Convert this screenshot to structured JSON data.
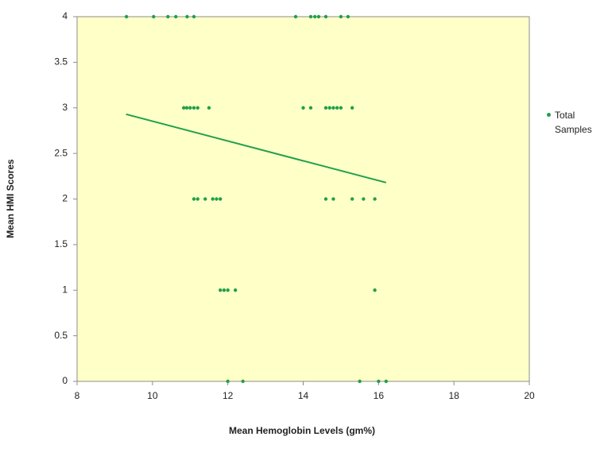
{
  "chart_data": {
    "type": "scatter",
    "x_label": "Mean Hemoglobin Levels (gm%)",
    "y_label": "Mean HMI Scores",
    "xlim": [
      8,
      20
    ],
    "xticks": [
      8,
      10,
      12,
      14,
      16,
      18,
      20
    ],
    "ylim": [
      0,
      4
    ],
    "yticks": [
      0,
      0.5,
      1,
      1.5,
      2,
      2.5,
      3,
      3.5,
      4
    ],
    "background": "#ffffc8",
    "series": [
      {
        "name": "Total Samples",
        "color": "#1fa04a",
        "x": [
          9.31,
          10.03,
          10.41,
          10.62,
          10.92,
          11.1,
          13.8,
          14.2,
          14.31,
          14.41,
          14.6,
          15.0,
          15.19,
          10.83,
          10.91,
          11.0,
          11.1,
          11.2,
          11.5,
          14.0,
          14.2,
          14.6,
          14.7,
          14.8,
          14.9,
          15.0,
          15.3,
          11.1,
          11.2,
          11.4,
          11.6,
          11.7,
          11.8,
          14.6,
          14.8,
          15.3,
          15.6,
          15.9,
          11.8,
          11.9,
          12.0,
          12.2,
          15.9,
          12.0,
          12.4,
          15.5,
          16.0,
          16.2
        ],
        "y": [
          4,
          4,
          4,
          4,
          4,
          4,
          4,
          4,
          4,
          4,
          4,
          4,
          4,
          3,
          3,
          3,
          3,
          3,
          3,
          3,
          3,
          3,
          3,
          3,
          3,
          3,
          3,
          2,
          2,
          2,
          2,
          2,
          2,
          2,
          2,
          2,
          2,
          2,
          1,
          1,
          1,
          1,
          1,
          0,
          0,
          0,
          0,
          0
        ]
      }
    ],
    "trendline": {
      "x": [
        9.3,
        16.2
      ],
      "y": [
        2.93,
        2.18
      ],
      "color": "#1fa04a"
    }
  }
}
